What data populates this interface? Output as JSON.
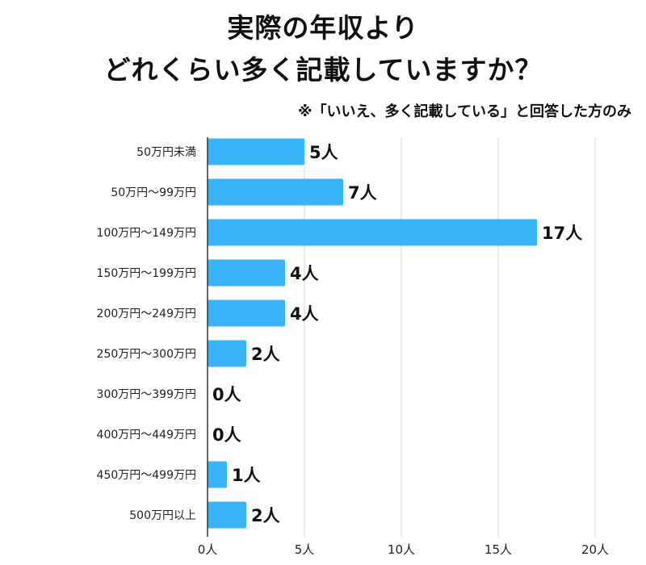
{
  "colors": {
    "bar": "#3ab5fb",
    "grid": "#d4d4d4",
    "axis": "#333333",
    "text": "#111111"
  },
  "chart_data": {
    "type": "bar",
    "orientation": "horizontal",
    "title_lines": [
      "実際の年収より",
      "どれくらい多く記載していますか？"
    ],
    "subtitle": "※「いいえ、多く記載している」と回答した方のみ",
    "categories": [
      "50万円未満",
      "50万円〜99万円",
      "100万円〜149万円",
      "150万円〜199万円",
      "200万円〜249万円",
      "250万円〜300万円",
      "300万円〜399万円",
      "400万円〜449万円",
      "450万円〜499万円",
      "500万円以上"
    ],
    "values": [
      5,
      7,
      17,
      4,
      4,
      2,
      0,
      0,
      1,
      2
    ],
    "data_labels": [
      "5人",
      "7人",
      "17人",
      "4人",
      "4人",
      "2人",
      "0人",
      "0人",
      "1人",
      "2人"
    ],
    "xlim": [
      0,
      20
    ],
    "xticks": [
      0,
      5,
      10,
      15,
      20
    ],
    "xtick_labels": [
      "0人",
      "5人",
      "10人",
      "15人",
      "20人"
    ],
    "grid": true,
    "legend": "none"
  }
}
